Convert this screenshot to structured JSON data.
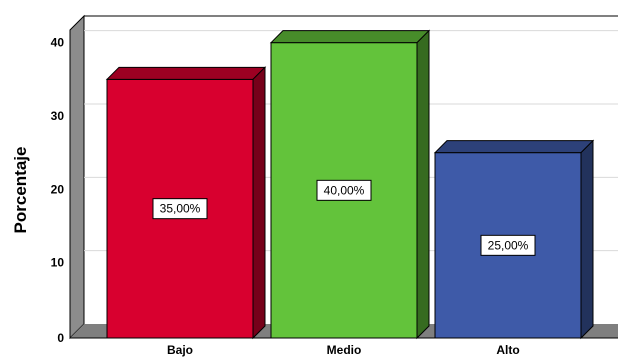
{
  "chart_data": {
    "type": "bar",
    "style": "3d",
    "title": "",
    "xlabel": "",
    "ylabel": "Porcentaje",
    "categories": [
      "Bajo",
      "Medio",
      "Alto"
    ],
    "values": [
      35,
      40,
      25
    ],
    "data_labels": [
      "35,00%",
      "40,00%",
      "25,00%"
    ],
    "colors": [
      "#d8002f",
      "#63c33b",
      "#3e5aa8"
    ],
    "ylim": [
      0,
      42
    ],
    "yticks": [
      0,
      10,
      20,
      30,
      40
    ],
    "ytick_labels": [
      "0",
      "10",
      "20",
      "30",
      "40"
    ],
    "grid": true,
    "legend": "none"
  }
}
